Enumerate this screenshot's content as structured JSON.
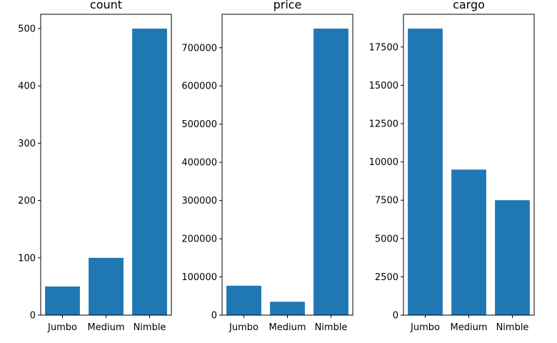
{
  "colors": {
    "bar": "#1f77b4",
    "axis": "#000000",
    "background": "#ffffff"
  },
  "chart_data": [
    {
      "type": "bar",
      "title": "count",
      "xlabel": "",
      "ylabel": "",
      "categories": [
        "Jumbo",
        "Medium",
        "Nimble"
      ],
      "values": [
        50,
        100,
        500
      ],
      "ylim": [
        0,
        525
      ],
      "yticks": [
        0,
        100,
        200,
        300,
        400,
        500
      ],
      "grid": false
    },
    {
      "type": "bar",
      "title": "price",
      "xlabel": "",
      "ylabel": "",
      "categories": [
        "Jumbo",
        "Medium",
        "Nimble"
      ],
      "values": [
        77000,
        35000,
        750000
      ],
      "ylim": [
        0,
        787500
      ],
      "yticks": [
        0,
        100000,
        200000,
        300000,
        400000,
        500000,
        600000,
        700000
      ],
      "grid": false
    },
    {
      "type": "bar",
      "title": "cargo",
      "xlabel": "",
      "ylabel": "",
      "categories": [
        "Jumbo",
        "Medium",
        "Nimble"
      ],
      "values": [
        18700,
        9500,
        7500
      ],
      "ylim": [
        0,
        19635
      ],
      "yticks": [
        0,
        2500,
        5000,
        7500,
        10000,
        12500,
        15000,
        17500
      ],
      "grid": false
    }
  ]
}
